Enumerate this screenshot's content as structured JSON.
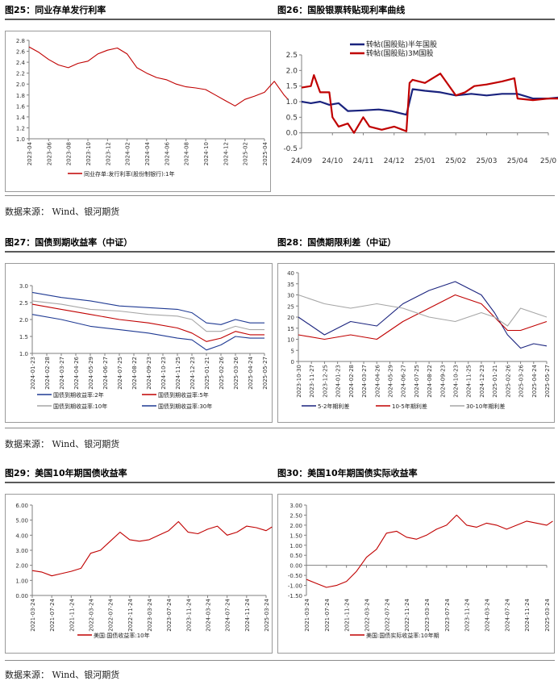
{
  "page": {
    "titles": {
      "fig25": "图25：同业存单发行利率",
      "fig26": "图26：国股银票转贴现利率曲线",
      "fig27": "图27：国债到期收益率（中证）",
      "fig28": "图28：国债期限利差（中证）",
      "fig29": "图29：美国10年期国债收益率",
      "fig30": "图30：美国10年期国债实际收益率"
    },
    "source": "数据来源：  Wind、银河期货",
    "colors": {
      "red": "#c00000",
      "blue": "#1f3a93",
      "navy": "#1a237e",
      "gray": "#a6a6a6"
    }
  },
  "chart_data": [
    {
      "id": "fig25",
      "type": "line",
      "ylim": [
        1.0,
        2.8
      ],
      "yticks": [
        "1.0",
        "1.2",
        "1.4",
        "1.6",
        "1.8",
        "2.0",
        "2.2",
        "2.4",
        "2.6",
        "2.8"
      ],
      "xticks": [
        "2023-04",
        "2023-06",
        "2023-08",
        "2023-10",
        "2023-12",
        "2024-02",
        "2024-04",
        "2024-06",
        "2024-08",
        "2024-10",
        "2024-12",
        "2025-02",
        "2025-04"
      ],
      "series": [
        {
          "name": "同业存单:发行利率(股份制银行):1年",
          "color": "#c00000",
          "x": [
            0,
            0.5,
            1,
            1.5,
            2,
            2.5,
            3,
            3.5,
            4,
            4.5,
            5,
            5.5,
            6,
            6.5,
            7,
            7.5,
            8,
            8.5,
            9,
            9.5,
            10,
            10.5,
            11,
            11.5,
            12,
            12.5,
            13,
            13.2
          ],
          "values": [
            2.68,
            2.58,
            2.45,
            2.35,
            2.3,
            2.38,
            2.42,
            2.55,
            2.62,
            2.66,
            2.55,
            2.3,
            2.2,
            2.12,
            2.08,
            2.0,
            1.95,
            1.93,
            1.9,
            1.8,
            1.7,
            1.6,
            1.72,
            1.78,
            1.85,
            2.05,
            1.8,
            1.72
          ]
        }
      ]
    },
    {
      "id": "fig26",
      "type": "line",
      "ylim": [
        -0.5,
        2.5
      ],
      "yticks": [
        "-0.5",
        "0.0",
        "0.5",
        "1.0",
        "1.5",
        "2.0",
        "2.5"
      ],
      "xticks": [
        "24/09",
        "24/10",
        "24/11",
        "24/12",
        "25/01",
        "25/02",
        "25/03",
        "25/04",
        "25/0"
      ],
      "series": [
        {
          "name": "转帖(国股贴)半年国股",
          "color": "#1a237e",
          "x": [
            0,
            0.3,
            0.6,
            0.9,
            1.2,
            1.5,
            2,
            2.5,
            2.9,
            3.4,
            3.6,
            4.0,
            4.5,
            5,
            5.5,
            6,
            6.5,
            7,
            7.5,
            8,
            8.5,
            9
          ],
          "values": [
            1.0,
            0.95,
            1.0,
            0.9,
            0.95,
            0.7,
            0.72,
            0.75,
            0.7,
            0.58,
            1.4,
            1.35,
            1.3,
            1.2,
            1.25,
            1.2,
            1.25,
            1.25,
            1.1,
            1.1,
            1.15,
            1.15
          ]
        },
        {
          "name": "转帖(国股贴)3M国股",
          "color": "#c00000",
          "x": [
            0,
            0.3,
            0.4,
            0.6,
            0.9,
            1.0,
            1.2,
            1.5,
            1.7,
            2.0,
            2.2,
            2.6,
            3.0,
            3.4,
            3.5,
            3.6,
            4.0,
            4.5,
            5,
            5.3,
            5.6,
            6,
            6.5,
            6.9,
            7.0,
            7.5,
            8,
            8.5,
            9
          ],
          "values": [
            1.45,
            1.5,
            1.85,
            1.3,
            1.3,
            0.5,
            0.2,
            0.3,
            0.0,
            0.5,
            0.2,
            0.1,
            0.2,
            0.05,
            1.6,
            1.7,
            1.6,
            1.9,
            1.2,
            1.3,
            1.5,
            1.55,
            1.65,
            1.75,
            1.1,
            1.05,
            1.1,
            1.1,
            1.15
          ]
        }
      ]
    },
    {
      "id": "fig27",
      "type": "line",
      "ylim": [
        1.0,
        3.0
      ],
      "yticks": [
        "1.0",
        "1.5",
        "2.0",
        "2.5",
        "3.0"
      ],
      "xticks": [
        "2024-01-23",
        "2024-02-28",
        "2024-03-27",
        "2024-04-26",
        "2024-05-29",
        "2024-06-27",
        "2024-07-25",
        "2024-08-22",
        "2024-09-23",
        "2024-10-23",
        "2024-11-25",
        "2024-12-23",
        "2025-01-21",
        "2025-02-26",
        "2025-03-26",
        "2025-04-24",
        "2025-05-27"
      ],
      "legend": [
        "国债到期收益率:2年",
        "国债到期收益率:5年",
        "国债到期收益率:10年",
        "国债到期收益率:30年"
      ],
      "series": [
        {
          "name": "国债到期收益率:2年",
          "color": "#1f3a93",
          "x": [
            0,
            2,
            4,
            6,
            8,
            10,
            11,
            12,
            13,
            14,
            15,
            16
          ],
          "values": [
            2.15,
            2.0,
            1.8,
            1.7,
            1.6,
            1.45,
            1.4,
            1.1,
            1.25,
            1.5,
            1.45,
            1.45
          ]
        },
        {
          "name": "国债到期收益率:5年",
          "color": "#c00000",
          "x": [
            0,
            2,
            4,
            6,
            8,
            10,
            11,
            12,
            13,
            14,
            15,
            16
          ],
          "values": [
            2.45,
            2.3,
            2.15,
            2.0,
            1.9,
            1.75,
            1.6,
            1.35,
            1.45,
            1.65,
            1.55,
            1.55
          ]
        },
        {
          "name": "国债到期收益率:10年",
          "color": "#a6a6a6",
          "x": [
            0,
            2,
            4,
            6,
            8,
            10,
            11,
            12,
            13,
            14,
            15,
            16
          ],
          "values": [
            2.55,
            2.45,
            2.3,
            2.25,
            2.15,
            2.1,
            2.0,
            1.65,
            1.65,
            1.8,
            1.7,
            1.7
          ]
        },
        {
          "name": "国债到期收益率:30年",
          "color": "#1f3a93",
          "x": [
            0,
            2,
            4,
            6,
            8,
            10,
            11,
            12,
            13,
            14,
            15,
            16
          ],
          "values": [
            2.8,
            2.65,
            2.55,
            2.4,
            2.35,
            2.3,
            2.2,
            1.9,
            1.85,
            2.0,
            1.9,
            1.9
          ]
        }
      ]
    },
    {
      "id": "fig28",
      "type": "line",
      "ylim": [
        0,
        40
      ],
      "yticks": [
        "0",
        "5",
        "10",
        "15",
        "20",
        "25",
        "30",
        "35",
        "40"
      ],
      "xticks": [
        "2023-10-30",
        "2023-11-27",
        "2023-12-25",
        "2024-01-23",
        "2024-02-28",
        "2024-03-27",
        "2024-04-26",
        "2024-05-29",
        "2024-06-27",
        "2024-07-25",
        "2024-08-22",
        "2024-09-23",
        "2024-10-23",
        "2024-11-25",
        "2024-12-23",
        "2025-01-21",
        "2025-02-26",
        "2025-03-26",
        "2025-04-24",
        "2025-05-27"
      ],
      "legend": [
        "5-2年期利差",
        "10-5年期利差",
        "30-10年期利差"
      ],
      "series": [
        {
          "name": "5-2年期利差",
          "color": "#1a237e",
          "x": [
            0,
            2,
            4,
            6,
            8,
            10,
            12,
            14,
            15,
            16,
            17,
            18,
            19
          ],
          "values": [
            20,
            12,
            18,
            16,
            26,
            32,
            36,
            30,
            22,
            12,
            6,
            8,
            7
          ]
        },
        {
          "name": "10-5年期利差",
          "color": "#c00000",
          "x": [
            0,
            2,
            4,
            6,
            8,
            10,
            12,
            14,
            15,
            16,
            17,
            18,
            19
          ],
          "values": [
            12,
            10,
            12,
            10,
            18,
            24,
            30,
            26,
            20,
            14,
            14,
            16,
            18
          ]
        },
        {
          "name": "30-10年期利差",
          "color": "#a6a6a6",
          "x": [
            0,
            2,
            4,
            6,
            8,
            10,
            12,
            14,
            15,
            16,
            17,
            18,
            19
          ],
          "values": [
            30,
            26,
            24,
            26,
            24,
            20,
            18,
            22,
            20,
            16,
            24,
            22,
            20
          ]
        }
      ]
    },
    {
      "id": "fig29",
      "type": "line",
      "ylim": [
        0,
        6
      ],
      "yticks": [
        "0.00",
        "1.00",
        "2.00",
        "3.00",
        "4.00",
        "5.00",
        "6.00"
      ],
      "xticks": [
        "2021-03-24",
        "2021-07-24",
        "2021-11-24",
        "2022-03-24",
        "2022-07-24",
        "2022-11-24",
        "2023-03-24",
        "2023-07-24",
        "2023-11-24",
        "2024-03-24",
        "2024-07-24",
        "2024-11-24",
        "2025-03-24"
      ],
      "legend": [
        "美国:国债收益率:10年"
      ],
      "series": [
        {
          "name": "美国:国债收益率:10年",
          "color": "#c00000",
          "x": [
            0,
            0.5,
            1,
            1.5,
            2,
            2.5,
            3,
            3.5,
            4,
            4.5,
            5,
            5.5,
            6,
            6.5,
            7,
            7.5,
            8,
            8.5,
            9,
            9.5,
            10,
            10.5,
            11,
            11.5,
            12,
            12.3
          ],
          "values": [
            1.65,
            1.55,
            1.3,
            1.45,
            1.6,
            1.8,
            2.8,
            3.0,
            3.6,
            4.2,
            3.7,
            3.6,
            3.7,
            4.0,
            4.3,
            4.9,
            4.2,
            4.1,
            4.4,
            4.6,
            4.0,
            4.2,
            4.6,
            4.5,
            4.3,
            4.55
          ]
        }
      ]
    },
    {
      "id": "fig30",
      "type": "line",
      "ylim": [
        -1.5,
        3.0
      ],
      "yticks": [
        "-1.50",
        "-1.00",
        "-0.50",
        "0.00",
        "0.50",
        "1.00",
        "1.50",
        "2.00",
        "2.50",
        "3.00"
      ],
      "xticks": [
        "2021-03-24",
        "2021-07-24",
        "2021-11-24",
        "2022-03-24",
        "2022-07-24",
        "2022-11-24",
        "2023-03-24",
        "2023-07-24",
        "2023-11-24",
        "2024-03-24",
        "2024-07-24",
        "2024-11-24",
        "2025-03-24"
      ],
      "legend": [
        "美国:国债实际收益率:10年期"
      ],
      "series": [
        {
          "name": "美国:国债实际收益率:10年期",
          "color": "#c00000",
          "x": [
            0,
            0.5,
            1,
            1.5,
            2,
            2.5,
            3,
            3.5,
            4,
            4.5,
            5,
            5.5,
            6,
            6.5,
            7,
            7.5,
            8,
            8.5,
            9,
            9.5,
            10,
            10.5,
            11,
            11.5,
            12,
            12.3
          ],
          "values": [
            -0.7,
            -0.9,
            -1.1,
            -1.0,
            -0.8,
            -0.3,
            0.4,
            0.8,
            1.6,
            1.7,
            1.4,
            1.3,
            1.5,
            1.8,
            2.0,
            2.5,
            2.0,
            1.9,
            2.1,
            2.0,
            1.8,
            2.0,
            2.2,
            2.1,
            2.0,
            2.2
          ]
        }
      ]
    }
  ]
}
